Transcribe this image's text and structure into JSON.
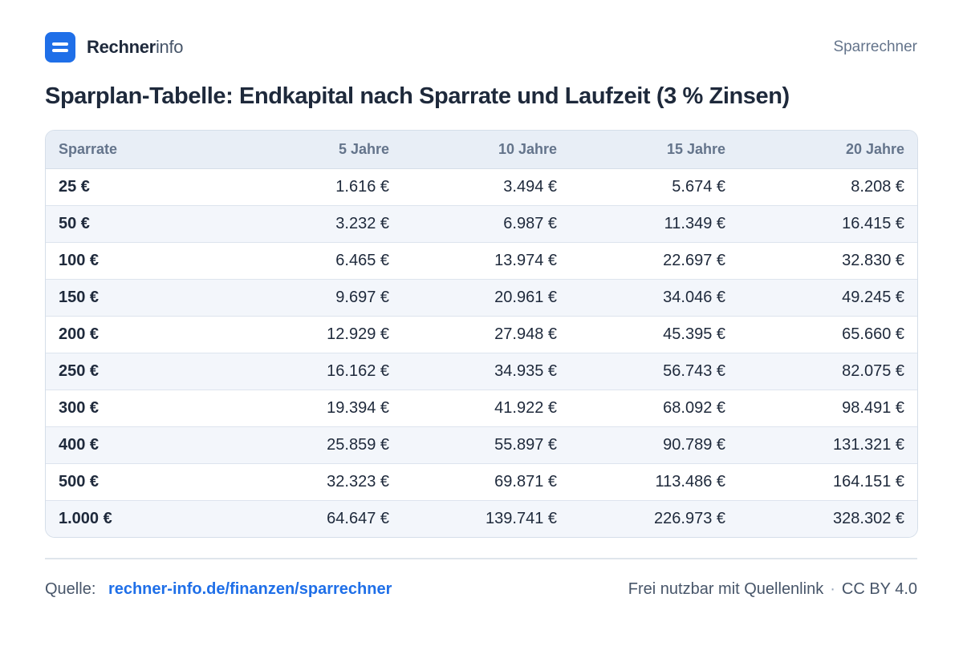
{
  "header": {
    "brand_strong": "Rechner",
    "brand_light": "info",
    "section": "Sparrechner"
  },
  "title": "Sparplan-Tabelle:  Endkapital nach Sparrate und Laufzeit (3 % Zinsen)",
  "colors": {
    "accent": "#1f6fe8",
    "header_bg": "#e8eef6",
    "stripe_bg": "#f3f6fb",
    "text": "#1e293b",
    "muted": "#64748b"
  },
  "icons": {
    "logo": "logo-two-bars-icon"
  },
  "chart_data": {
    "type": "table",
    "title": "Sparplan-Tabelle:  Endkapital nach Sparrate und Laufzeit (3 % Zinsen)",
    "columns": [
      "Sparrate",
      "5 Jahre",
      "10 Jahre",
      "15 Jahre",
      "20 Jahre"
    ],
    "rows": [
      [
        "25 €",
        "1.616 €",
        "3.494 €",
        "5.674 €",
        "8.208 €"
      ],
      [
        "50 €",
        "3.232 €",
        "6.987 €",
        "11.349 €",
        "16.415 €"
      ],
      [
        "100 €",
        "6.465 €",
        "13.974 €",
        "22.697 €",
        "32.830 €"
      ],
      [
        "150 €",
        "9.697 €",
        "20.961 €",
        "34.046 €",
        "49.245 €"
      ],
      [
        "200 €",
        "12.929 €",
        "27.948 €",
        "45.395 €",
        "65.660 €"
      ],
      [
        "250 €",
        "16.162 €",
        "34.935 €",
        "56.743 €",
        "82.075 €"
      ],
      [
        "300 €",
        "19.394 €",
        "41.922 €",
        "68.092 €",
        "98.491 €"
      ],
      [
        "400 €",
        "25.859 €",
        "55.897 €",
        "90.789 €",
        "131.321 €"
      ],
      [
        "500 €",
        "32.323 €",
        "69.871 €",
        "113.486 €",
        "164.151 €"
      ],
      [
        "1.000 €",
        "64.647 €",
        "139.741 €",
        "226.973 €",
        "328.302 €"
      ]
    ]
  },
  "footer": {
    "source_label": "Quelle:",
    "source_link": "rechner-info.de/finanzen/sparrechner",
    "license_text": "Frei nutzbar mit Quellenlink",
    "license_sep": "·",
    "license_name": "CC BY 4.0"
  }
}
